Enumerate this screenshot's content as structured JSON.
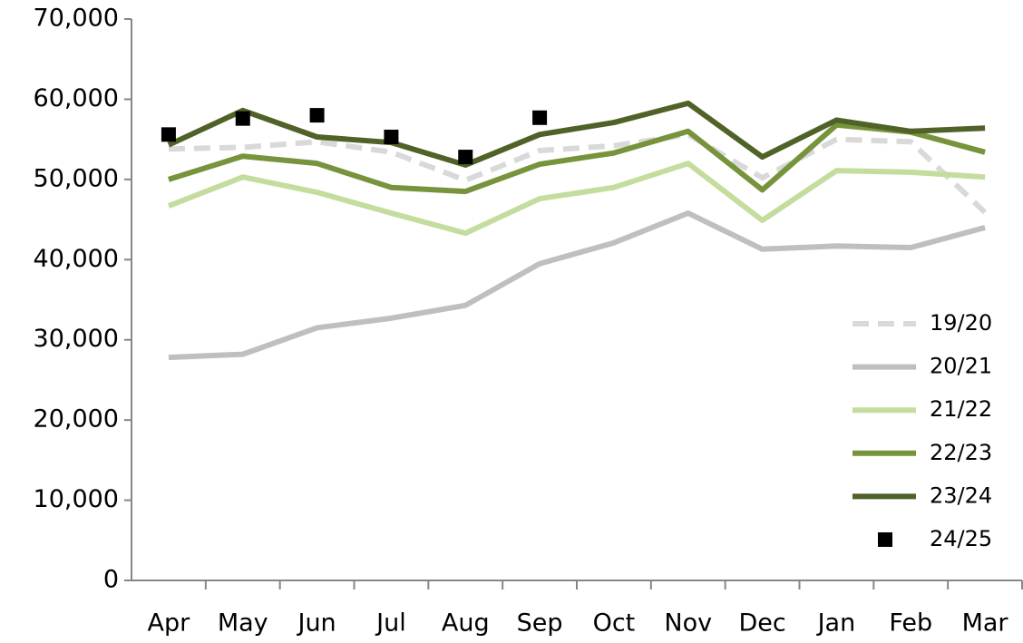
{
  "chart_data": {
    "type": "line",
    "categories": [
      "Apr",
      "May",
      "Jun",
      "Jul",
      "Aug",
      "Sep",
      "Oct",
      "Nov",
      "Dec",
      "Jan",
      "Feb",
      "Mar"
    ],
    "series": [
      {
        "name": "19/20",
        "color": "#d9d9d9",
        "line_style": "dashed",
        "values": [
          53800,
          54000,
          54700,
          53400,
          49900,
          53600,
          54200,
          55600,
          50200,
          55000,
          54700,
          45900
        ]
      },
      {
        "name": "20/21",
        "color": "#bfbfbf",
        "line_style": "solid",
        "values": [
          27800,
          28200,
          31500,
          32700,
          34300,
          39500,
          42100,
          45800,
          41300,
          41700,
          41500,
          44000
        ]
      },
      {
        "name": "21/22",
        "color": "#c4dd9f",
        "line_style": "solid",
        "values": [
          46700,
          50300,
          48400,
          45800,
          43300,
          47600,
          49000,
          52000,
          44900,
          51100,
          50900,
          50300
        ]
      },
      {
        "name": "22/23",
        "color": "#77933c",
        "line_style": "solid",
        "values": [
          50000,
          52900,
          52000,
          49000,
          48500,
          51900,
          53300,
          56000,
          48700,
          56800,
          55900,
          53400
        ]
      },
      {
        "name": "23/24",
        "color": "#4f6228",
        "line_style": "solid",
        "values": [
          54300,
          58600,
          55300,
          54600,
          51800,
          55600,
          57100,
          59500,
          52800,
          57400,
          56000,
          56400
        ]
      },
      {
        "name": "24/25",
        "color": "#000000",
        "line_style": "none",
        "marker": "square",
        "values": [
          55600,
          57600,
          58000,
          55300,
          52800,
          57700,
          null,
          null,
          null,
          null,
          null,
          null
        ]
      }
    ],
    "ylim": [
      0,
      70000
    ],
    "yticks": [
      0,
      {
        "value": 10000,
        "label": "10,000"
      },
      {
        "value": 20000,
        "label": "20,000"
      },
      {
        "value": 30000,
        "label": "30,000"
      },
      {
        "value": 40000,
        "label": "40,000"
      },
      {
        "value": 50000,
        "label": "50,000"
      },
      {
        "value": 60000,
        "label": "60,000"
      },
      {
        "value": 70000,
        "label": "70,000"
      }
    ],
    "legend": "lower right",
    "grid": false
  }
}
